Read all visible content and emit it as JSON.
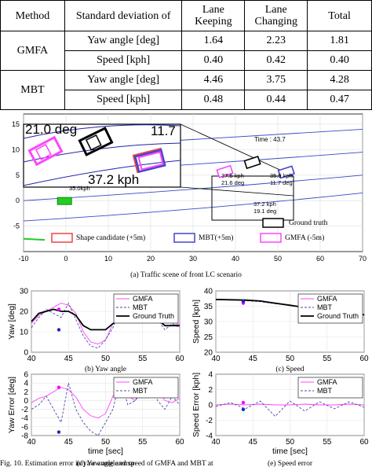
{
  "table": {
    "headers": [
      "Method",
      "Standard deviation of",
      "Lane\nKeeping",
      "Lane\nChanging",
      "Total"
    ],
    "header_lines": {
      "lane_keeping": [
        "Lane",
        "Keeping"
      ],
      "lane_changing": [
        "Lane",
        "Changing"
      ]
    },
    "rows": [
      {
        "method": "GMFA",
        "metric": "Yaw angle [deg]",
        "lane_keeping": "1.64",
        "lane_changing": "2.23",
        "total": "1.81"
      },
      {
        "method": "",
        "metric": "Speed [kph]",
        "lane_keeping": "0.40",
        "lane_changing": "0.42",
        "total": "0.40"
      },
      {
        "method": "MBT",
        "metric": "Yaw angle [deg]",
        "lane_keeping": "4.46",
        "lane_changing": "3.75",
        "total": "4.28"
      },
      {
        "method": "",
        "metric": "Speed [kph]",
        "lane_keeping": "0.48",
        "lane_changing": "0.44",
        "total": "0.47"
      }
    ]
  },
  "scene": {
    "caption": "(a) Traffic  scene of front LC scenario",
    "time_label": "Time : 43.7",
    "inset_text": {
      "deg": "21.0 deg",
      "right": "11.7",
      "speed": "37.2 kph"
    },
    "annotations": [
      {
        "line1": "37.5 kph",
        "line2": "21.6 deg"
      },
      {
        "line1": "35.9 kph",
        "line2": "11.7 deg"
      },
      {
        "line1": "37.2 kph",
        "line2": "19.1 deg"
      },
      {
        "line1": "35.0kph",
        "line2": ""
      }
    ],
    "legend": {
      "ground_truth": "Ground truth",
      "shape": "Shape candidate (+5m)",
      "mbt": "MBT(+5m)",
      "gmfa": "GMFA  (-5m)"
    }
  },
  "colors": {
    "gmfa": "#ff44ff",
    "mbt": "#4a4aa8",
    "truth": "#000000",
    "marker_gmfa": "#ff00ff",
    "marker_mbt": "#1a2ab8"
  },
  "chart_data": [
    {
      "type": "scatter",
      "title": "(a) Traffic  scene of front LC scenario",
      "xlim": [
        -10,
        70
      ],
      "ylim": [
        -10,
        17
      ],
      "xticks": [
        "-10",
        "0",
        "10",
        "20",
        "30",
        "40",
        "50",
        "60",
        "70"
      ],
      "yticks": [
        "15",
        "10",
        "5",
        "0",
        "-5"
      ],
      "series": [
        {
          "name": "Ground truth",
          "x": [
            44
          ],
          "y": [
            7.5
          ]
        },
        {
          "name": "GMFA  (-5m)",
          "x": [
            37.5
          ],
          "y": [
            5.7
          ]
        },
        {
          "name": "MBT(+5m)",
          "x": [
            52
          ],
          "y": [
            5.6
          ]
        }
      ]
    },
    {
      "type": "line",
      "title": "(b) Yaw angle",
      "ylabel": "Yaw [deg]",
      "xlim": [
        40,
        60
      ],
      "ylim": [
        0,
        30
      ],
      "xticks": [
        "40",
        "45",
        "50",
        "55",
        "60"
      ],
      "yticks": [
        "0",
        "10",
        "20",
        "30"
      ],
      "x": [
        40,
        41,
        42,
        43,
        44,
        45,
        46,
        47,
        48,
        49,
        50,
        51,
        52,
        53,
        54,
        55,
        56,
        57,
        58,
        59,
        60
      ],
      "series": [
        {
          "name": "GMFA",
          "values": [
            14,
            18,
            20,
            22,
            24,
            23,
            19,
            10,
            5,
            4,
            6,
            14,
            19,
            18,
            17,
            22,
            24,
            18,
            13,
            13,
            14
          ]
        },
        {
          "name": "MBT",
          "values": [
            12,
            17,
            21,
            19,
            17,
            24,
            16,
            8,
            3,
            2,
            6,
            12,
            21,
            16,
            17,
            23,
            25,
            16,
            11,
            14,
            12
          ]
        },
        {
          "name": "Ground Truth",
          "values": [
            15,
            19,
            20,
            21,
            20,
            20,
            18,
            13,
            11,
            11,
            11,
            14,
            16,
            17,
            17,
            20,
            20,
            16,
            13,
            13,
            13
          ]
        }
      ]
    },
    {
      "type": "line",
      "title": "(c) Speed",
      "ylabel": "Speed [kph]",
      "xlim": [
        40,
        60
      ],
      "ylim": [
        20,
        40
      ],
      "xticks": [
        "40",
        "45",
        "50",
        "55",
        "60"
      ],
      "yticks": [
        "20",
        "25",
        "30",
        "35",
        "40"
      ],
      "x": [
        40,
        42,
        44,
        46,
        48,
        50,
        52,
        54,
        56,
        58,
        60
      ],
      "series": [
        {
          "name": "GMFA",
          "values": [
            37.2,
            37.1,
            37.0,
            36.8,
            36.0,
            35.3,
            34.7,
            34.0,
            33.3,
            32.8,
            32.2
          ]
        },
        {
          "name": "MBT",
          "values": [
            37.0,
            37.2,
            36.8,
            36.5,
            35.8,
            35.5,
            34.4,
            34.2,
            33.0,
            33.0,
            32.0
          ]
        },
        {
          "name": "Ground Truth",
          "values": [
            37.2,
            37.1,
            37.0,
            36.7,
            36.0,
            35.3,
            34.6,
            34.0,
            33.3,
            32.8,
            32.2
          ]
        }
      ]
    },
    {
      "type": "line",
      "title": "(d) Yaw angle  error",
      "xlabel": "time [sec]",
      "ylabel": "Yaw Error [deg]",
      "xlim": [
        40,
        60
      ],
      "ylim": [
        -8,
        6
      ],
      "xticks": [
        "40",
        "45",
        "50",
        "55",
        "60"
      ],
      "yticks": [
        "-8",
        "-6",
        "-4",
        "-2",
        "0",
        "2",
        "4",
        "6"
      ],
      "x": [
        40,
        41,
        42,
        43,
        44,
        45,
        46,
        47,
        48,
        49,
        50,
        51,
        52,
        53,
        54,
        55,
        56,
        57,
        58,
        59,
        60
      ],
      "series": [
        {
          "name": "GMFA",
          "values": [
            -0.5,
            0.5,
            1.0,
            2.0,
            3.0,
            2.5,
            0.8,
            -2.0,
            -3.5,
            -4.0,
            -3.0,
            1.0,
            3.0,
            1.0,
            0.0,
            2.0,
            4.0,
            2.5,
            0.0,
            -0.5,
            0.5
          ]
        },
        {
          "name": "MBT",
          "values": [
            -2,
            -1,
            1,
            -2,
            -5,
            4,
            -2,
            -5,
            -7,
            -8,
            -5,
            -2,
            5,
            -1,
            0,
            3,
            5,
            0,
            -2,
            1,
            -1
          ]
        }
      ]
    },
    {
      "type": "line",
      "title": "(e) Speed error",
      "xlabel": "time [sec]",
      "ylabel": "Speed Error [kph]",
      "xlim": [
        40,
        60
      ],
      "ylim": [
        -4,
        4
      ],
      "xticks": [
        "40",
        "45",
        "50",
        "55",
        "60"
      ],
      "yticks": [
        "-4",
        "-2",
        "0",
        "2",
        "4"
      ],
      "x": [
        40,
        42,
        44,
        46,
        48,
        50,
        52,
        54,
        56,
        58,
        60
      ],
      "series": [
        {
          "name": "GMFA",
          "values": [
            0.0,
            0.1,
            0.0,
            0.1,
            0.0,
            0.0,
            0.1,
            0.0,
            0.0,
            0.1,
            0.0
          ]
        },
        {
          "name": "MBT",
          "values": [
            -0.2,
            0.3,
            -0.5,
            0.5,
            -1.5,
            0.5,
            -0.8,
            0.4,
            -0.5,
            0.4,
            -0.3
          ]
        }
      ]
    }
  ],
  "figure_caption": "Fig. 10.    Estimation error in yaw angle and speed of GMFA and MBT at"
}
